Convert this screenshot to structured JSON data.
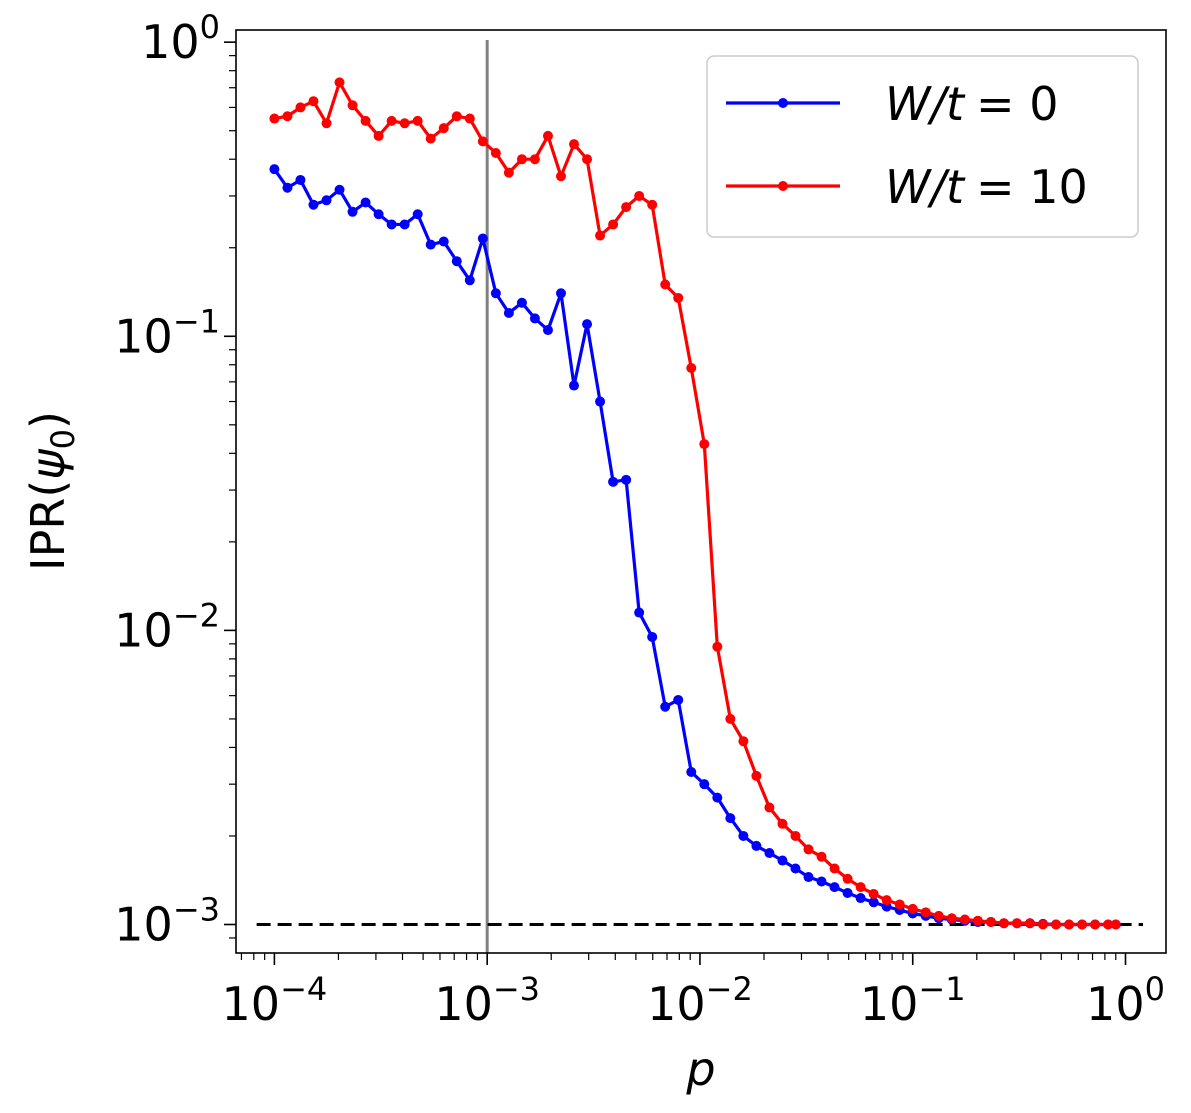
{
  "chart_data": {
    "type": "line",
    "xscale": "log",
    "yscale": "log",
    "xlabel": "p",
    "ylabel": "IPR(ψ0)",
    "xlim": [
      6.6e-05,
      1.55
    ],
    "ylim": [
      0.0008,
      1.1
    ],
    "xticks": [
      {
        "value": 0.0001,
        "base": "10",
        "exp": "−4"
      },
      {
        "value": 0.001,
        "base": "10",
        "exp": "−3"
      },
      {
        "value": 0.01,
        "base": "10",
        "exp": "−2"
      },
      {
        "value": 0.1,
        "base": "10",
        "exp": "−1"
      },
      {
        "value": 1,
        "base": "10",
        "exp": "0"
      }
    ],
    "yticks": [
      {
        "value": 0.001,
        "base": "10",
        "exp": "−3"
      },
      {
        "value": 0.01,
        "base": "10",
        "exp": "−2"
      },
      {
        "value": 0.1,
        "base": "10",
        "exp": "−1"
      },
      {
        "value": 1,
        "base": "10",
        "exp": "0"
      }
    ],
    "reference_lines": {
      "vertical": {
        "x": 0.001,
        "color": "#808080"
      },
      "horizontal": {
        "y": 0.001,
        "color": "#000000",
        "style": "dashed"
      }
    },
    "legend": {
      "placement": "top-right"
    },
    "series": [
      {
        "name": "W/t = 0",
        "legend_var": "W/t",
        "legend_eq": "= 0",
        "color": "#0000ff",
        "x": [
          0.0001,
          0.00011514,
          0.00013257,
          0.00015264,
          0.00017575,
          0.00020236,
          0.000233,
          0.00026827,
          0.00030888,
          0.00035565,
          0.00040949,
          0.00047149,
          0.00054287,
          0.00062506,
          0.0007197,
          0.00082866,
          0.00095412,
          0.0010986,
          0.0012649,
          0.0014564,
          0.0016768,
          0.0019307,
          0.002223,
          0.0025595,
          0.002947,
          0.0033932,
          0.0039069,
          0.0044984,
          0.0051795,
          0.0059636,
          0.0068665,
          0.0079061,
          0.0091031,
          0.010481,
          0.012068,
          0.013895,
          0.015999,
          0.018421,
          0.02121,
          0.024421,
          0.028118,
          0.032375,
          0.037276,
          0.042919,
          0.049417,
          0.056899,
          0.065513,
          0.075431,
          0.086851,
          0.1,
          0.11514,
          0.13257,
          0.15264,
          0.17575,
          0.20236,
          0.233,
          0.26827,
          0.30888,
          0.35565,
          0.40949,
          0.47149,
          0.54287,
          0.62506,
          0.7197,
          0.82866,
          0.9
        ],
        "y": [
          0.37,
          0.32,
          0.34,
          0.28,
          0.29,
          0.315,
          0.265,
          0.285,
          0.26,
          0.24,
          0.24,
          0.26,
          0.205,
          0.21,
          0.18,
          0.155,
          0.215,
          0.14,
          0.12,
          0.13,
          0.115,
          0.105,
          0.14,
          0.068,
          0.11,
          0.06,
          0.032,
          0.0325,
          0.0115,
          0.0095,
          0.0055,
          0.0058,
          0.0033,
          0.003,
          0.0027,
          0.0023,
          0.002,
          0.00185,
          0.00175,
          0.00165,
          0.00155,
          0.00145,
          0.0014,
          0.00134,
          0.00128,
          0.00123,
          0.00119,
          0.00115,
          0.00112,
          0.00109,
          0.00107,
          0.00105,
          0.00104,
          0.00103,
          0.00102,
          0.00102,
          0.00101,
          0.00101,
          0.00101,
          0.001005,
          0.001,
          0.001,
          0.001,
          0.001,
          0.001,
          0.001
        ]
      },
      {
        "name": "W/t = 10",
        "legend_var": "W/t",
        "legend_eq": "= 10",
        "color": "#ff0000",
        "x": [
          0.0001,
          0.00011514,
          0.00013257,
          0.00015264,
          0.00017575,
          0.00020236,
          0.000233,
          0.00026827,
          0.00030888,
          0.00035565,
          0.00040949,
          0.00047149,
          0.00054287,
          0.00062506,
          0.0007197,
          0.00082866,
          0.00095412,
          0.0010986,
          0.0012649,
          0.0014564,
          0.0016768,
          0.0019307,
          0.002223,
          0.0025595,
          0.002947,
          0.0033932,
          0.0039069,
          0.0044984,
          0.0051795,
          0.0059636,
          0.0068665,
          0.0079061,
          0.0091031,
          0.010481,
          0.012068,
          0.013895,
          0.015999,
          0.018421,
          0.02121,
          0.024421,
          0.028118,
          0.032375,
          0.037276,
          0.042919,
          0.049417,
          0.056899,
          0.065513,
          0.075431,
          0.086851,
          0.1,
          0.11514,
          0.13257,
          0.15264,
          0.17575,
          0.20236,
          0.233,
          0.26827,
          0.30888,
          0.35565,
          0.40949,
          0.47149,
          0.54287,
          0.62506,
          0.7197,
          0.82866,
          0.9
        ],
        "y": [
          0.55,
          0.56,
          0.6,
          0.63,
          0.53,
          0.73,
          0.61,
          0.54,
          0.48,
          0.54,
          0.53,
          0.54,
          0.47,
          0.51,
          0.56,
          0.55,
          0.46,
          0.42,
          0.36,
          0.4,
          0.4,
          0.48,
          0.35,
          0.45,
          0.4,
          0.22,
          0.24,
          0.275,
          0.3,
          0.28,
          0.15,
          0.135,
          0.078,
          0.043,
          0.0088,
          0.005,
          0.0042,
          0.0032,
          0.0025,
          0.0022,
          0.002,
          0.0018,
          0.0017,
          0.00155,
          0.00143,
          0.00134,
          0.00127,
          0.00121,
          0.00117,
          0.00113,
          0.0011,
          0.00107,
          0.00105,
          0.00104,
          0.00103,
          0.00102,
          0.00101,
          0.00101,
          0.00101,
          0.001,
          0.001,
          0.001,
          0.001,
          0.001,
          0.001,
          0.001
        ]
      }
    ]
  }
}
